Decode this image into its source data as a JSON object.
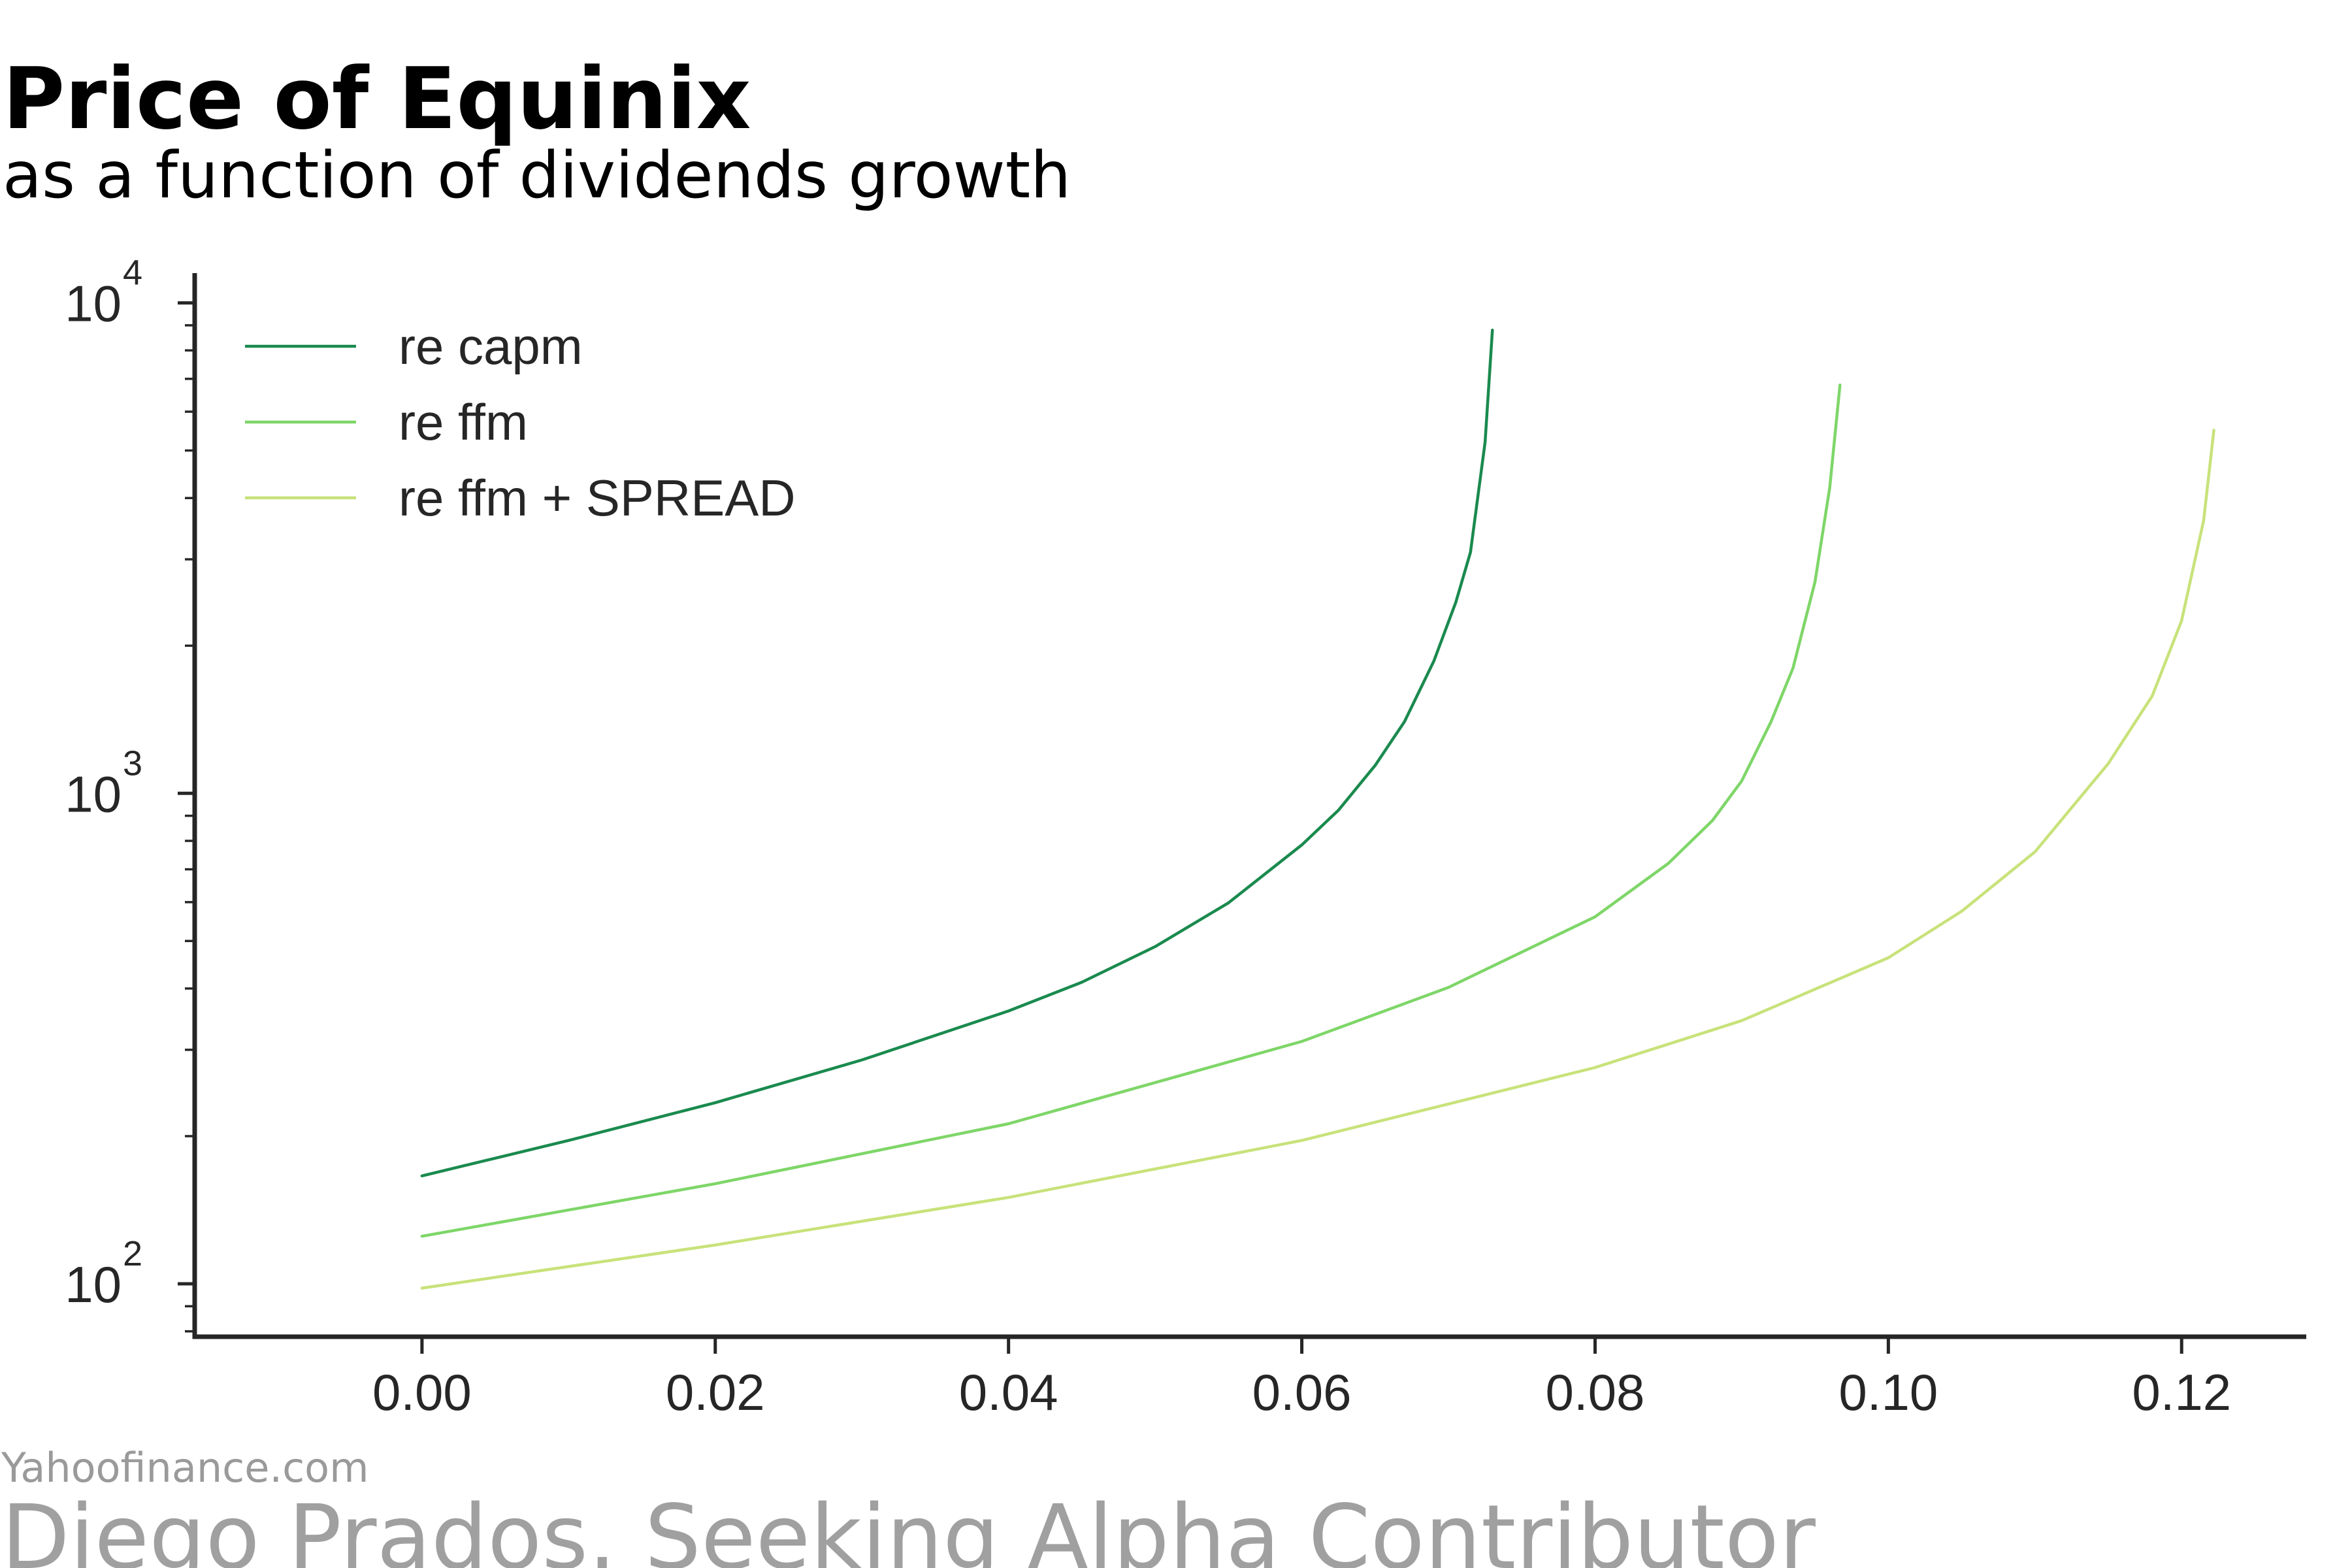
{
  "chart_data": {
    "type": "line",
    "title": "Price of Equinix",
    "subtitle": "as a function of dividends growth",
    "xlabel": "",
    "ylabel": "",
    "xlim": [
      -0.0155,
      0.1285
    ],
    "ylim": [
      78,
      11500
    ],
    "y_scale": "log",
    "grid": false,
    "legend_position": "top-left",
    "x_ticks": [
      {
        "value": 0.0,
        "label": "0.00"
      },
      {
        "value": 0.02,
        "label": "0.02"
      },
      {
        "value": 0.04,
        "label": "0.04"
      },
      {
        "value": 0.06,
        "label": "0.06"
      },
      {
        "value": 0.08,
        "label": "0.08"
      },
      {
        "value": 0.1,
        "label": "0.10"
      },
      {
        "value": 0.12,
        "label": "0.12"
      }
    ],
    "y_ticks": [
      {
        "value": 100,
        "base": "10",
        "exp": "2"
      },
      {
        "value": 1000,
        "base": "10",
        "exp": "3"
      },
      {
        "value": 10000,
        "base": "10",
        "exp": "4"
      }
    ],
    "series": [
      {
        "name": "re capm",
        "color": "#1a8a4e",
        "x": [
          0.0,
          0.01,
          0.02,
          0.03,
          0.04,
          0.045,
          0.05,
          0.055,
          0.06,
          0.0625,
          0.065,
          0.067,
          0.069,
          0.0705,
          0.0715,
          0.0725,
          0.073
        ],
        "y": [
          166,
          196,
          234,
          286,
          360,
          412,
          487,
          598,
          785,
          924,
          1140,
          1400,
          1860,
          2450,
          3100,
          5200,
          8800
        ]
      },
      {
        "name": "re ffm",
        "color": "#7ed668",
        "x": [
          0.0,
          0.02,
          0.04,
          0.06,
          0.07,
          0.08,
          0.085,
          0.088,
          0.09,
          0.092,
          0.0935,
          0.095,
          0.096,
          0.0967
        ],
        "y": [
          125,
          160,
          212,
          312,
          402,
          560,
          720,
          880,
          1060,
          1400,
          1800,
          2700,
          4200,
          6800
        ]
      },
      {
        "name": "re ffm + SPREAD",
        "color": "#c8e27a",
        "x": [
          0.0,
          0.02,
          0.04,
          0.06,
          0.08,
          0.09,
          0.1,
          0.105,
          0.11,
          0.115,
          0.118,
          0.12,
          0.1215,
          0.1222
        ],
        "y": [
          98,
          120,
          150,
          196,
          276,
          344,
          462,
          575,
          760,
          1150,
          1580,
          2250,
          3600,
          5500
        ]
      }
    ]
  },
  "footer": {
    "source": "Yahoofinance.com",
    "credit": "Diego Prados. Seeking Alpha Contributor"
  }
}
